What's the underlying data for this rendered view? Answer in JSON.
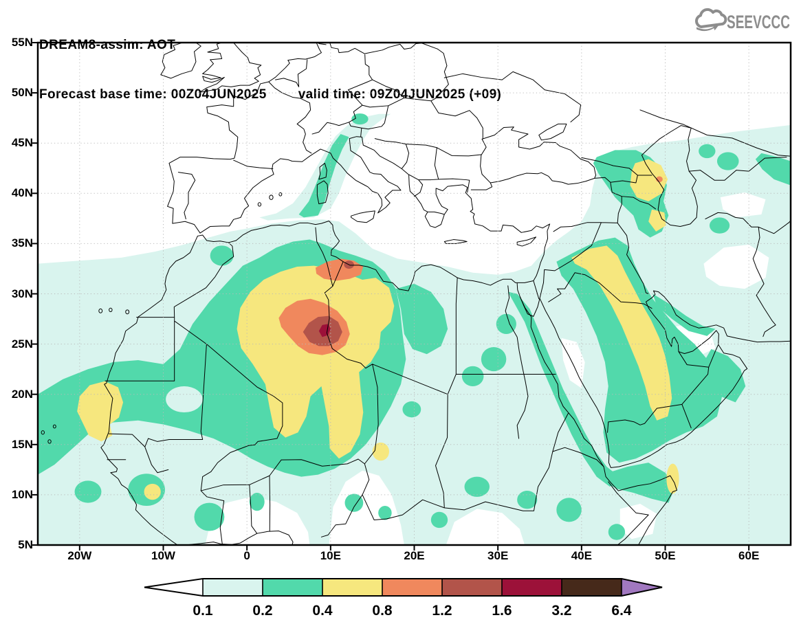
{
  "header": {
    "line1": "DREAM8-assim: AOT",
    "line2_left": "Forecast base time: 00Z04JUN2025",
    "line2_right": "valid time: 09Z04JUN2025 (+09)"
  },
  "logo": {
    "text": "SEEVCCC",
    "color": "#8d8d8d",
    "icon": "cloud-arrow-icon"
  },
  "map": {
    "extent": {
      "lon_min": -25,
      "lon_max": 65,
      "lat_min": 5,
      "lat_max": 55
    },
    "lat_labels": [
      "55N",
      "50N",
      "45N",
      "40N",
      "35N",
      "30N",
      "25N",
      "20N",
      "15N",
      "10N",
      "5N"
    ],
    "lon_labels": [
      "20W",
      "10W",
      "0",
      "10E",
      "20E",
      "30E",
      "40E",
      "50E",
      "60E"
    ],
    "grid": {
      "lon_step_deg": 10,
      "lat_step_deg": 5,
      "style": "dotted-gray"
    }
  },
  "colorbar": {
    "labels": [
      "0.1",
      "0.2",
      "0.4",
      "0.8",
      "1.2",
      "1.6",
      "3.2",
      "6.4"
    ],
    "colors": {
      "below": "#ffffff",
      "c1": "#d9f4ee",
      "c2": "#52d9ab",
      "c3": "#f6e77e",
      "c4": "#f0885d",
      "c5": "#b2544a",
      "c6": "#9c1139",
      "c7": "#46291a",
      "above": "#a178c0"
    }
  },
  "chart_data": {
    "type": "heatmap",
    "title": "DREAM8-assim Aerosol Optical Thickness filled-contour forecast map",
    "levels": [
      0.1,
      0.2,
      0.4,
      0.8,
      1.2,
      1.6,
      3.2,
      6.4
    ],
    "units": "AOT (dimensionless)",
    "features": [
      {
        "region": "Central Sahara core (S Algeria ~9E, 26N)",
        "aot_range": "1.6-3.2"
      },
      {
        "region": "Algeria/Libya surrounding core",
        "aot_range": "1.2-1.6"
      },
      {
        "region": "NW Libya coast near Tripoli (~12E, 33N)",
        "aot_range": "1.2-1.6 spot in 0.8-1.2"
      },
      {
        "region": "Broad central Sahara plume (-2E to 17E, 14-33N)",
        "aot_range": "0.4-0.8"
      },
      {
        "region": "Mauritania Atlantic coast (~18W, 16-21N)",
        "aot_range": "0.4-0.8"
      },
      {
        "region": "Eastern Saudi Arabia / Iraq band (39-51E, 17-34N)",
        "aot_range": "0.4-0.8"
      },
      {
        "region": "Caucasus / Caspian (46-50E, 36-43N)",
        "aot_range": "0.4-0.8 with 0.8-1.2 spot"
      },
      {
        "region": "Sahel / West Africa / Red Sea / Horn",
        "aot_range": "0.2-0.4"
      },
      {
        "region": "Corsica-Italy-Alps band",
        "aot_range": "0.1-0.4"
      },
      {
        "region": "Most of N Africa, Arabia, SW Asia background",
        "aot_range": "0.1-0.2"
      }
    ]
  }
}
